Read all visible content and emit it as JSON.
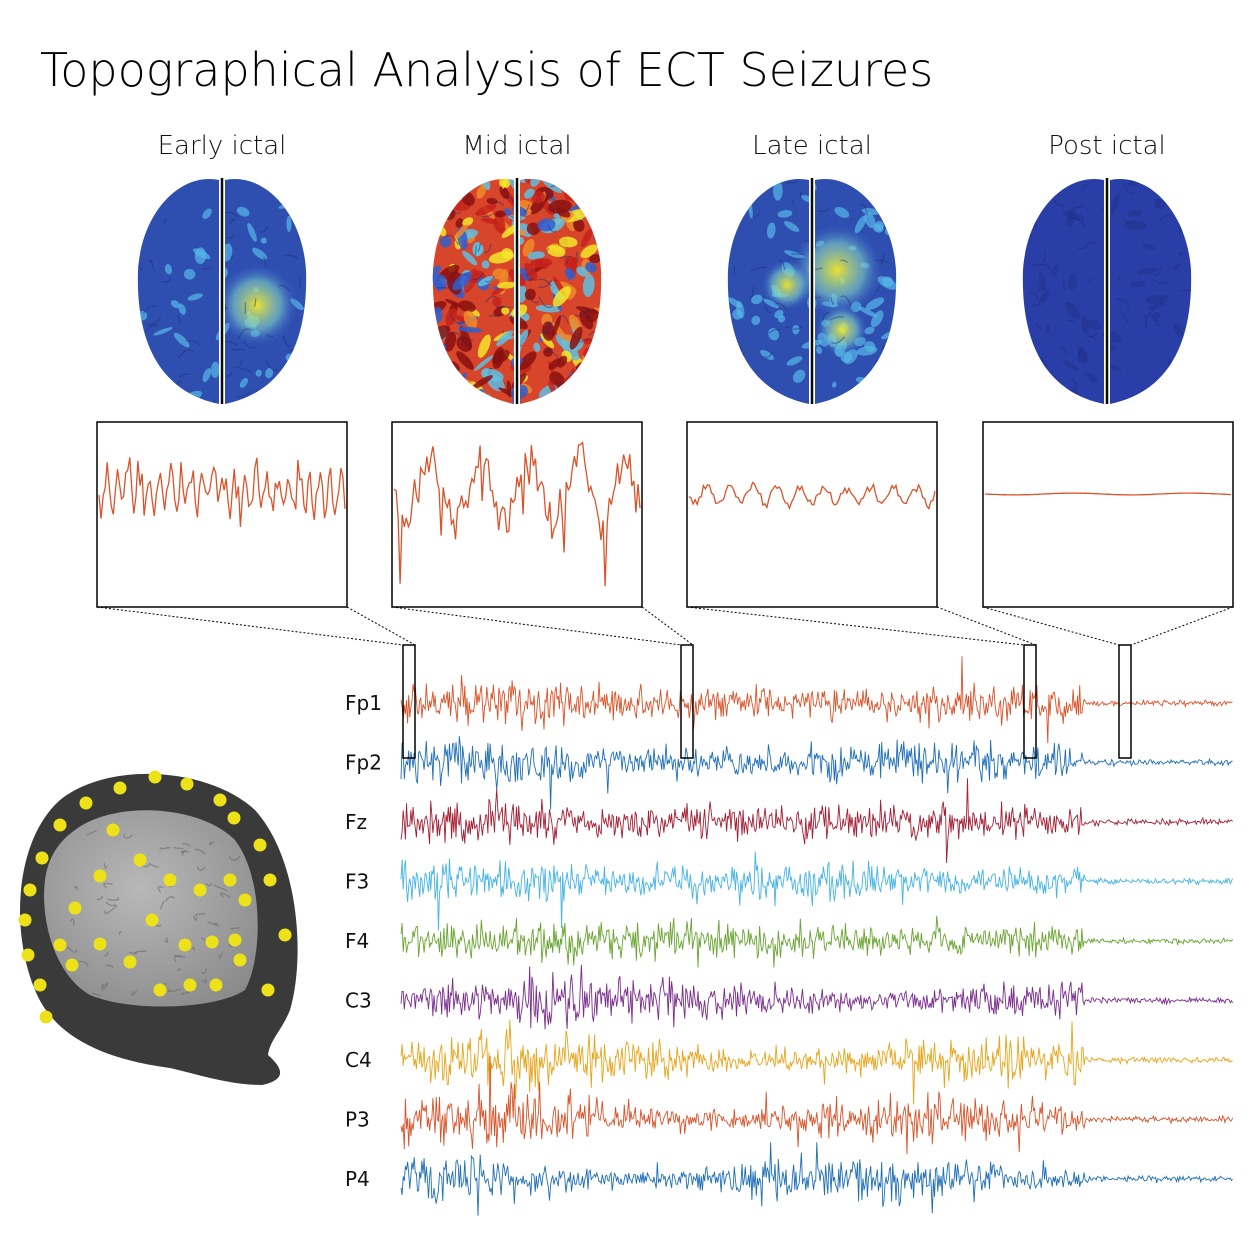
{
  "title": "Topographical Analysis of ECT Seizures",
  "phases": [
    {
      "id": "early",
      "label": "Early ictal"
    },
    {
      "id": "mid",
      "label": "Mid ictal"
    },
    {
      "id": "late",
      "label": "Late ictal"
    },
    {
      "id": "post",
      "label": "Post ictal"
    }
  ],
  "channels": [
    {
      "name": "Fp1",
      "color": "#d9542a"
    },
    {
      "name": "Fp2",
      "color": "#1f6fb8"
    },
    {
      "name": "Fz",
      "color": "#a31f34"
    },
    {
      "name": "F3",
      "color": "#46b4e6"
    },
    {
      "name": "F4",
      "color": "#6aa532"
    },
    {
      "name": "C3",
      "color": "#7b2d8e"
    },
    {
      "name": "C4",
      "color": "#e8a51c"
    },
    {
      "name": "P3",
      "color": "#d9542a"
    },
    {
      "name": "P4",
      "color": "#1f6fb8"
    }
  ],
  "colors": {
    "trace": "#d9542a",
    "electrode": "#ede21a",
    "brain_base": "#2f4fb0",
    "head": "#3a3a3a",
    "cortex": "#9a9a9a"
  }
}
